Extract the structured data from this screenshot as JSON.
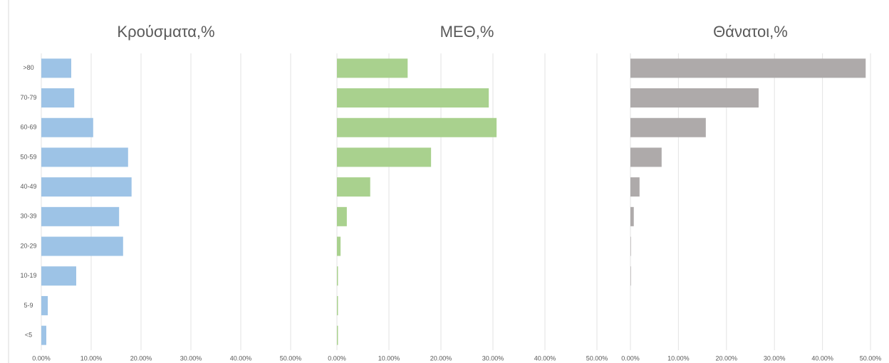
{
  "chart_data": [
    {
      "type": "bar",
      "orientation": "horizontal",
      "title": "Κρούσματα,%",
      "categories": [
        ">80",
        "70-79",
        "60-69",
        "50-59",
        "40-49",
        "30-39",
        "20-29",
        "10-19",
        "5-9",
        "<5"
      ],
      "values": [
        6.0,
        6.6,
        10.4,
        17.4,
        18.1,
        15.6,
        16.4,
        7.0,
        1.3,
        1.0
      ],
      "color": "#9dc3e6",
      "xlim": [
        0,
        50
      ],
      "xticks": [
        {
          "value": 0,
          "label": "0.00%"
        },
        {
          "value": 10,
          "label": "10.00%"
        },
        {
          "value": 20,
          "label": "20.00%"
        },
        {
          "value": 30,
          "label": "30.00%"
        },
        {
          "value": 40,
          "label": "40.00%"
        },
        {
          "value": 50,
          "label": "50.00%"
        }
      ],
      "grid": true
    },
    {
      "type": "bar",
      "orientation": "horizontal",
      "title": "ΜΕΘ,%",
      "values": [
        13.6,
        29.2,
        30.7,
        18.1,
        6.4,
        1.9,
        0.7,
        0.2,
        0.2,
        0.2
      ],
      "color": "#a9d18e",
      "xlim": [
        0,
        50
      ],
      "xticks": [
        {
          "value": 0,
          "label": "0.00%"
        },
        {
          "value": 10,
          "label": "10.00%"
        },
        {
          "value": 20,
          "label": "20.00%"
        },
        {
          "value": 30,
          "label": "30.00%"
        },
        {
          "value": 40,
          "label": "40.00%"
        },
        {
          "value": 50,
          "label": "50.00%"
        }
      ],
      "grid": true
    },
    {
      "type": "bar",
      "orientation": "horizontal",
      "title": "Θάνατοι,%",
      "values": [
        49.0,
        26.7,
        15.7,
        6.5,
        1.9,
        0.7,
        0.1,
        0.1,
        0,
        0
      ],
      "color": "#aeaaaa",
      "xlim": [
        0,
        50
      ],
      "xticks": [
        {
          "value": 0,
          "label": "0.00%"
        },
        {
          "value": 10,
          "label": "10.00%"
        },
        {
          "value": 20,
          "label": "20.00%"
        },
        {
          "value": 30,
          "label": "30.00%"
        },
        {
          "value": 40,
          "label": "40.00%"
        },
        {
          "value": 50,
          "label": "50.00%"
        }
      ],
      "grid": true
    }
  ]
}
